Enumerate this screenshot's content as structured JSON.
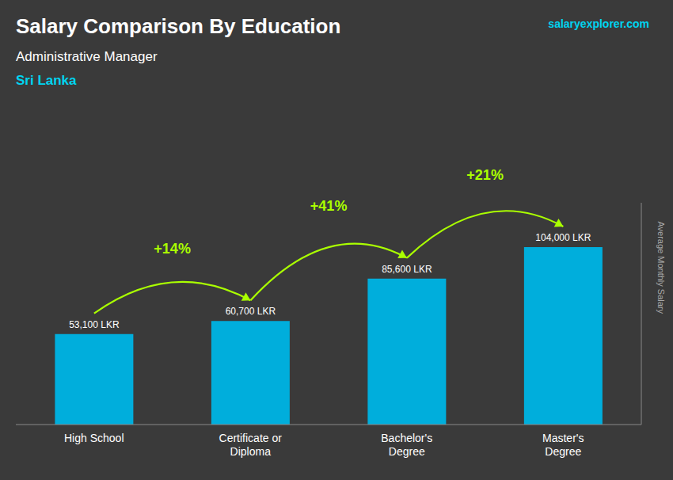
{
  "chart_data": {
    "type": "bar",
    "title": "Salary Comparison By Education",
    "subtitle": "Administrative Manager",
    "annotations": [
      "Sri Lanka",
      "salaryexplorer.com"
    ],
    "ylabel": "Average Monthly Salary",
    "categories": [
      "High School",
      "Certificate or\nDiploma",
      "Bachelor's\nDegree",
      "Master's\nDegree"
    ],
    "values": [
      53100,
      60700,
      85600,
      104000
    ],
    "value_labels": [
      "53,100 LKR",
      "60,700 LKR",
      "85,600 LKR",
      "104,000 LKR"
    ],
    "change_labels": [
      "+14%",
      "+41%",
      "+21%"
    ],
    "color": "#00aedc",
    "ylim": [
      0,
      130000
    ],
    "grid": false,
    "data_labels": true,
    "tick_labels": "x"
  }
}
